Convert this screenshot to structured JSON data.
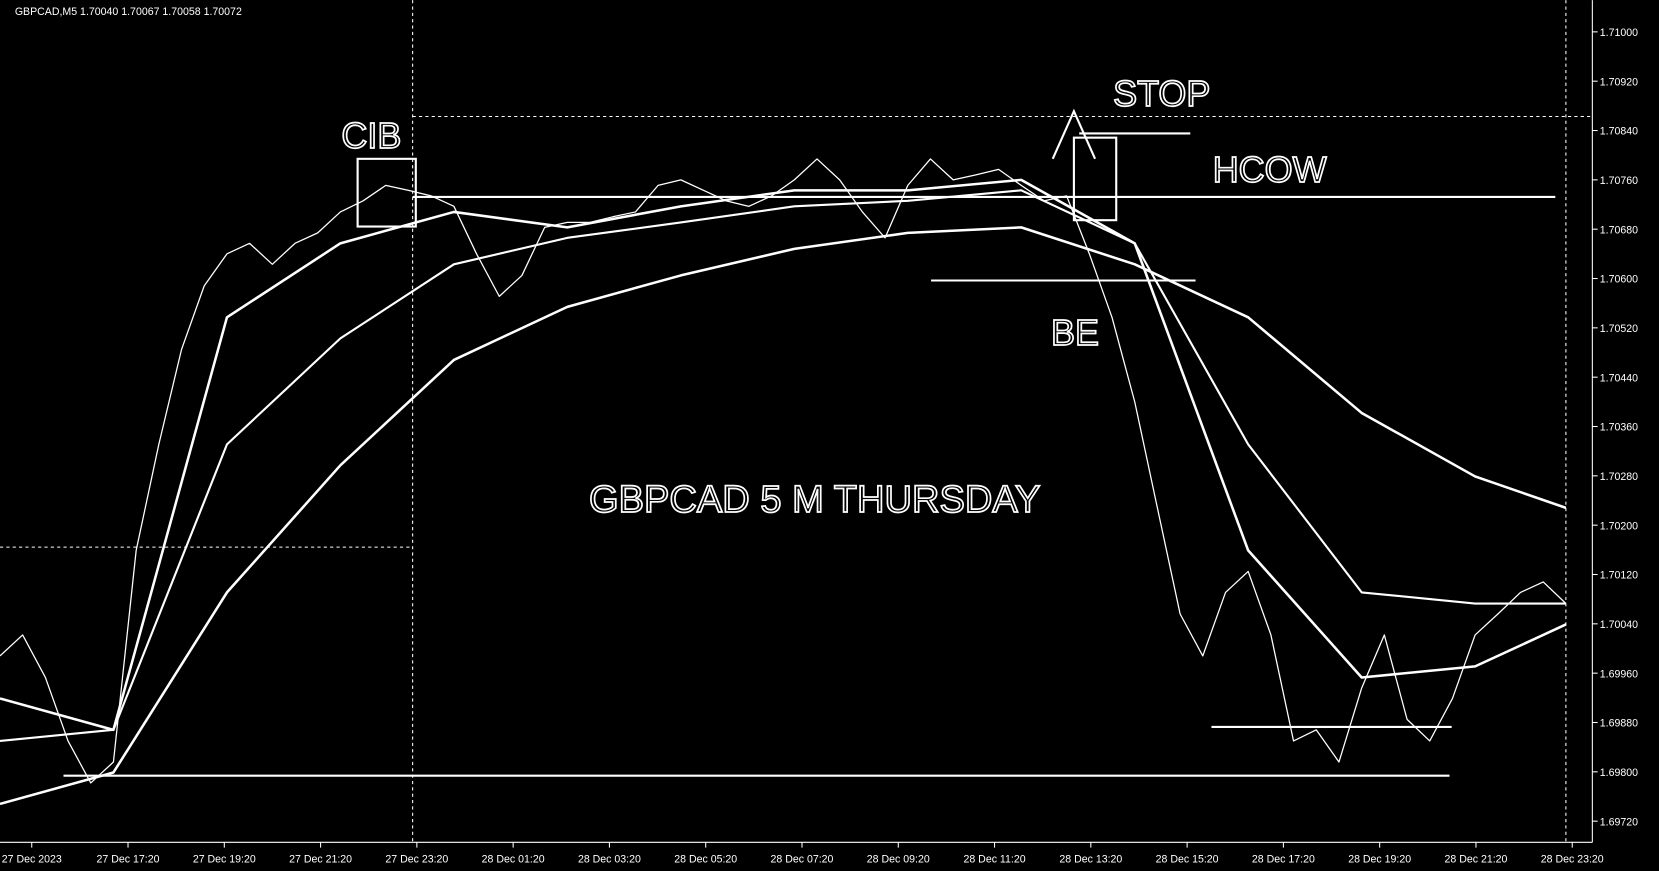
{
  "header": "GBPCAD,M5  1.70040 1.70067 1.70058 1.70072",
  "chart_data": {
    "type": "line",
    "title": "GBPCAD 5 M   THURSDAY",
    "annotations": [
      "CIB",
      "STOP",
      "HCOW",
      "BE"
    ],
    "x_labels": [
      "27 Dec 2023",
      "27 Dec 17:20",
      "27 Dec 19:20",
      "27 Dec 21:20",
      "27 Dec 23:20",
      "28 Dec 01:20",
      "28 Dec 03:20",
      "28 Dec 05:20",
      "28 Dec 07:20",
      "28 Dec 09:20",
      "28 Dec 11:20",
      "28 Dec 13:20",
      "28 Dec 15:20",
      "28 Dec 17:20",
      "28 Dec 19:20",
      "28 Dec 21:20",
      "28 Dec 23:20"
    ],
    "xlim": [
      0,
      69
    ],
    "ylim": [
      1.6972,
      1.71
    ],
    "yticks": [
      {
        "value": 1.6972,
        "label": "1.69720"
      },
      {
        "value": 1.698,
        "label": "1.69800"
      },
      {
        "value": 1.6988,
        "label": "1.69880"
      },
      {
        "value": 1.6996,
        "label": "1.69960"
      },
      {
        "value": 1.7004,
        "label": "1.70040"
      },
      {
        "value": 1.7012,
        "label": "1.70120"
      },
      {
        "value": 1.702,
        "label": "1.70200"
      },
      {
        "value": 1.7028,
        "label": "1.70280"
      },
      {
        "value": 1.7036,
        "label": "1.70360"
      },
      {
        "value": 1.7044,
        "label": "1.70440"
      },
      {
        "value": 1.7052,
        "label": "1.70520"
      },
      {
        "value": 1.706,
        "label": "1.70600"
      },
      {
        "value": 1.7068,
        "label": "1.70680"
      },
      {
        "value": 1.7076,
        "label": "1.70760"
      },
      {
        "value": 1.7084,
        "label": "1.70840"
      },
      {
        "value": 1.7092,
        "label": "1.70920"
      },
      {
        "value": 1.71,
        "label": "1.71000"
      }
    ],
    "series": [
      {
        "color": "#ffffff",
        "width": 1.2,
        "x": [
          0,
          1,
          2,
          3,
          4,
          5,
          6,
          7,
          8,
          9,
          10,
          11,
          12,
          13,
          14,
          15,
          16,
          17,
          18,
          19,
          20,
          21,
          22,
          23,
          24,
          25,
          26,
          27,
          28,
          29,
          30,
          31,
          32,
          33,
          34,
          35,
          36,
          37,
          38,
          39,
          40,
          41,
          42,
          43,
          44,
          45,
          46,
          47,
          48,
          49,
          50,
          51,
          52,
          53,
          54,
          55,
          56,
          57,
          58,
          59,
          60,
          61,
          62,
          63,
          64,
          65,
          66,
          67,
          68,
          69
        ],
        "values": [
          1.69988,
          1.70022,
          1.69953,
          1.6985,
          1.69782,
          1.69816,
          1.70159,
          1.70331,
          1.70485,
          1.70588,
          1.7064,
          1.70657,
          1.70623,
          1.70657,
          1.70674,
          1.70708,
          1.70726,
          1.70751,
          1.70743,
          1.70734,
          1.70717,
          1.7064,
          1.70571,
          1.70605,
          1.70683,
          1.70691,
          1.70691,
          1.707,
          1.70708,
          1.70751,
          1.7076,
          1.70743,
          1.70726,
          1.70717,
          1.70734,
          1.7076,
          1.70794,
          1.7076,
          1.70708,
          1.70666,
          1.70751,
          1.70794,
          1.7076,
          1.70768,
          1.70777,
          1.70751,
          1.70726,
          1.70734,
          1.7064,
          1.70537,
          1.704,
          1.70228,
          1.70056,
          1.69988,
          1.70091,
          1.70125,
          1.70022,
          1.6985,
          1.69868,
          1.69816,
          1.69936,
          1.70022,
          1.69885,
          1.6985,
          1.69919,
          1.70022,
          1.70056,
          1.70091,
          1.70108,
          1.70073
        ]
      },
      {
        "color": "#ffffff",
        "width": 2.4,
        "x": [
          0,
          5,
          10,
          15,
          20,
          25,
          30,
          35,
          40,
          45,
          50,
          55,
          60,
          65,
          69
        ],
        "values": [
          1.69919,
          1.69868,
          1.70537,
          1.70657,
          1.70708,
          1.70683,
          1.70717,
          1.70743,
          1.70743,
          1.7076,
          1.70657,
          1.70159,
          1.69953,
          1.69971,
          1.70039
        ]
      },
      {
        "color": "#ffffff",
        "width": 2,
        "x": [
          0,
          5,
          10,
          15,
          20,
          25,
          30,
          35,
          40,
          45,
          50,
          55,
          60,
          65,
          69
        ],
        "values": [
          1.6985,
          1.69868,
          1.70331,
          1.70503,
          1.70623,
          1.70666,
          1.70691,
          1.70717,
          1.70726,
          1.70743,
          1.70657,
          1.70331,
          1.70091,
          1.70073,
          1.70073
        ]
      },
      {
        "color": "#ffffff",
        "width": 2.4,
        "x": [
          0,
          5,
          10,
          15,
          20,
          25,
          30,
          35,
          40,
          45,
          50,
          55,
          60,
          65,
          69
        ],
        "values": [
          1.69748,
          1.69799,
          1.70091,
          1.70297,
          1.70468,
          1.70554,
          1.70605,
          1.70648,
          1.70674,
          1.70683,
          1.70623,
          1.70537,
          1.70382,
          1.70279,
          1.70228
        ]
      }
    ]
  }
}
